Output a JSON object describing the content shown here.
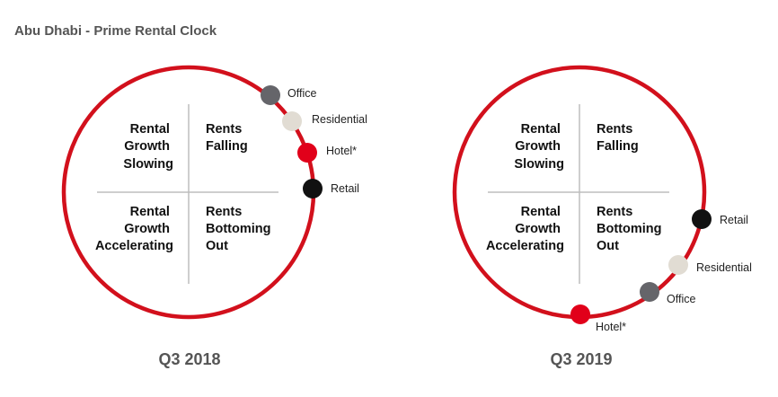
{
  "title": "Abu Dhabi - Prime Rental Clock",
  "colors": {
    "ring": "#d2101c",
    "cross": "#bdbdbd",
    "office": "#65656a",
    "residential": "#e1dcd3",
    "hotel": "#e1001a",
    "retail": "#111111"
  },
  "quadrants": {
    "top_left": [
      "Rental",
      "Growth",
      "Slowing"
    ],
    "top_right": [
      "Rents",
      "Falling"
    ],
    "bottom_left": [
      "Rental",
      "Growth",
      "Accelerating"
    ],
    "bottom_right": [
      "Rents",
      "Bottoming",
      "Out"
    ]
  },
  "clocks": [
    {
      "period": "Q3 2018",
      "markers": [
        {
          "label": "Office",
          "color_key": "office"
        },
        {
          "label": "Residential",
          "color_key": "residential"
        },
        {
          "label": "Hotel*",
          "color_key": "hotel"
        },
        {
          "label": "Retail",
          "color_key": "retail"
        }
      ]
    },
    {
      "period": "Q3 2019",
      "markers": [
        {
          "label": "Retail",
          "color_key": "retail"
        },
        {
          "label": "Residential",
          "color_key": "residential"
        },
        {
          "label": "Office",
          "color_key": "office"
        },
        {
          "label": "Hotel*",
          "color_key": "hotel"
        }
      ]
    }
  ]
}
